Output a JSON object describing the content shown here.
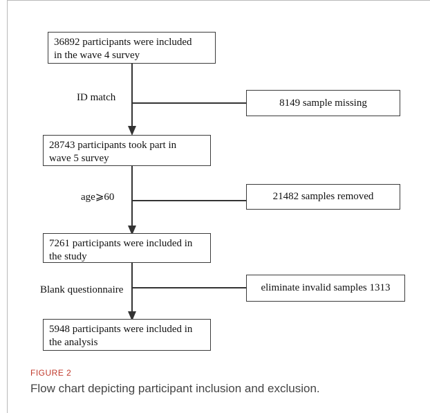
{
  "flow": {
    "box1": {
      "line1": "36892 participants were included",
      "line2": "in the wave 4 survey"
    },
    "step1_label": "ID match",
    "side1": "8149 sample missing",
    "box2": {
      "line1": "28743 participants took part in",
      "line2": "wave 5 survey"
    },
    "step2_label": "age⩾60",
    "side2": "21482 samples removed",
    "box3": {
      "line1": "7261 participants were included in",
      "line2": "the study"
    },
    "step3_label": "Blank questionnaire",
    "side3": "eliminate invalid samples 1313",
    "box4": {
      "line1": "5948 participants were included in",
      "line2": "the analysis"
    }
  },
  "figure": {
    "label": "FIGURE 2",
    "caption": "Flow chart depicting participant inclusion and exclusion."
  }
}
